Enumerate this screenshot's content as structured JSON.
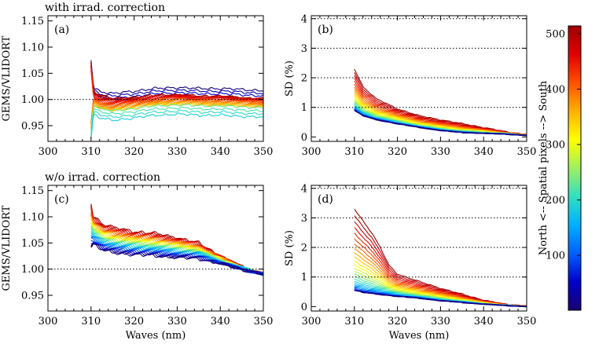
{
  "chart_data": [
    {
      "type": "line",
      "id": "a",
      "panel_label": "(a)",
      "title": "with irrad. correction",
      "xlabel": "",
      "ylabel": "GEMS/VLIDORT",
      "xlim": [
        300,
        350
      ],
      "ylim": [
        0.92,
        1.16
      ],
      "xticks": [
        300,
        310,
        320,
        330,
        340,
        350
      ],
      "yticks": [
        0.95,
        1.0,
        1.05,
        1.1,
        1.15
      ],
      "ytick_labels": [
        "0.95",
        "1.00",
        "1.05",
        "1.10",
        "1.15"
      ],
      "reference_line": 1.0,
      "series_range": [
        310,
        350
      ],
      "center_profile": [
        [
          310,
          1.005
        ],
        [
          312,
          0.995
        ],
        [
          315,
          0.99
        ],
        [
          320,
          0.995
        ],
        [
          325,
          1.0
        ],
        [
          330,
          1.002
        ],
        [
          335,
          1.0
        ],
        [
          340,
          1.0
        ],
        [
          345,
          0.998
        ],
        [
          350,
          0.996
        ]
      ],
      "spread_north": 0.02,
      "spread_south": -0.035,
      "spread_peak_wave": 310
    },
    {
      "type": "line",
      "id": "b",
      "panel_label": "(b)",
      "title": "",
      "xlabel": "",
      "ylabel": "SD (%)",
      "xlim": [
        300,
        350
      ],
      "ylim": [
        -0.15,
        4.1
      ],
      "xticks": [
        300,
        310,
        320,
        330,
        340,
        350
      ],
      "yticks": [
        0,
        1,
        2,
        3,
        4
      ],
      "ytick_labels": [
        "0",
        "1",
        "2",
        "3",
        "4"
      ],
      "gridlines_y": [
        1,
        2,
        3,
        4
      ],
      "series_range": [
        310,
        350
      ],
      "north_profile": [
        [
          310,
          2.3
        ],
        [
          312,
          1.7
        ],
        [
          315,
          1.3
        ],
        [
          320,
          0.95
        ],
        [
          325,
          0.72
        ],
        [
          330,
          0.58
        ],
        [
          335,
          0.45
        ],
        [
          340,
          0.32
        ],
        [
          345,
          0.18
        ],
        [
          350,
          0.08
        ]
      ],
      "south_profile": [
        [
          310,
          0.9
        ],
        [
          312,
          0.72
        ],
        [
          315,
          0.58
        ],
        [
          320,
          0.45
        ],
        [
          325,
          0.32
        ],
        [
          330,
          0.22
        ],
        [
          335,
          0.15
        ],
        [
          340,
          0.12
        ],
        [
          345,
          0.1
        ],
        [
          350,
          0.05
        ]
      ]
    },
    {
      "type": "line",
      "id": "c",
      "panel_label": "(c)",
      "title": "w/o irrad. correction",
      "xlabel": "Waves (nm)",
      "ylabel": "GEMS/VLIDORT",
      "xlim": [
        300,
        350
      ],
      "ylim": [
        0.92,
        1.16
      ],
      "xticks": [
        300,
        310,
        320,
        330,
        340,
        350
      ],
      "yticks": [
        0.95,
        1.0,
        1.05,
        1.1,
        1.15
      ],
      "ytick_labels": [
        "0.95",
        "1.00",
        "1.05",
        "1.10",
        "1.15"
      ],
      "reference_line": 1.0,
      "series_range": [
        310,
        350
      ],
      "south_profile": [
        [
          310,
          1.105
        ],
        [
          313,
          1.085
        ],
        [
          316,
          1.078
        ],
        [
          320,
          1.072
        ],
        [
          325,
          1.068
        ],
        [
          330,
          1.06
        ],
        [
          335,
          1.05
        ],
        [
          340,
          1.025
        ],
        [
          345,
          1.005
        ],
        [
          350,
          0.99
        ]
      ],
      "north_profile": [
        [
          310,
          1.05
        ],
        [
          313,
          1.035
        ],
        [
          316,
          1.03
        ],
        [
          320,
          1.028
        ],
        [
          325,
          1.025
        ],
        [
          330,
          1.022
        ],
        [
          335,
          1.02
        ],
        [
          340,
          1.01
        ],
        [
          345,
          1.0
        ],
        [
          350,
          0.99
        ]
      ]
    },
    {
      "type": "line",
      "id": "d",
      "panel_label": "(d)",
      "title": "",
      "xlabel": "Waves (nm)",
      "ylabel": "SD (%)",
      "xlim": [
        300,
        350
      ],
      "ylim": [
        -0.15,
        4.1
      ],
      "xticks": [
        300,
        310,
        320,
        330,
        340,
        350
      ],
      "yticks": [
        0,
        1,
        2,
        3,
        4
      ],
      "ytick_labels": [
        "0",
        "1",
        "2",
        "3",
        "4"
      ],
      "gridlines_y": [
        1,
        2,
        3,
        4
      ],
      "series_range": [
        310,
        350
      ],
      "north_profile": [
        [
          310,
          3.3
        ],
        [
          312,
          2.9
        ],
        [
          314,
          2.5
        ],
        [
          316,
          2.0
        ],
        [
          318,
          1.4
        ],
        [
          320,
          1.1
        ],
        [
          325,
          0.85
        ],
        [
          330,
          0.62
        ],
        [
          335,
          0.42
        ],
        [
          340,
          0.22
        ],
        [
          345,
          0.08
        ],
        [
          350,
          0.02
        ]
      ],
      "south_profile": [
        [
          310,
          0.55
        ],
        [
          312,
          0.48
        ],
        [
          315,
          0.42
        ],
        [
          320,
          0.35
        ],
        [
          325,
          0.28
        ],
        [
          330,
          0.2
        ],
        [
          335,
          0.14
        ],
        [
          340,
          0.08
        ],
        [
          345,
          0.04
        ],
        [
          350,
          0.0
        ]
      ]
    }
  ],
  "colorbar": {
    "label": "North <-- Spatial pixels --> South",
    "range": [
      1,
      514
    ],
    "ticks": [
      100,
      200,
      300,
      400,
      500
    ],
    "tick_labels": [
      "100",
      "200",
      "300",
      "400",
      "500"
    ],
    "colormap": [
      "#1a0070",
      "#0000cc",
      "#0060ff",
      "#00b0ff",
      "#30e0c0",
      "#a0f060",
      "#ffff00",
      "#ffb000",
      "#ff5000",
      "#e00000",
      "#a00000"
    ]
  }
}
